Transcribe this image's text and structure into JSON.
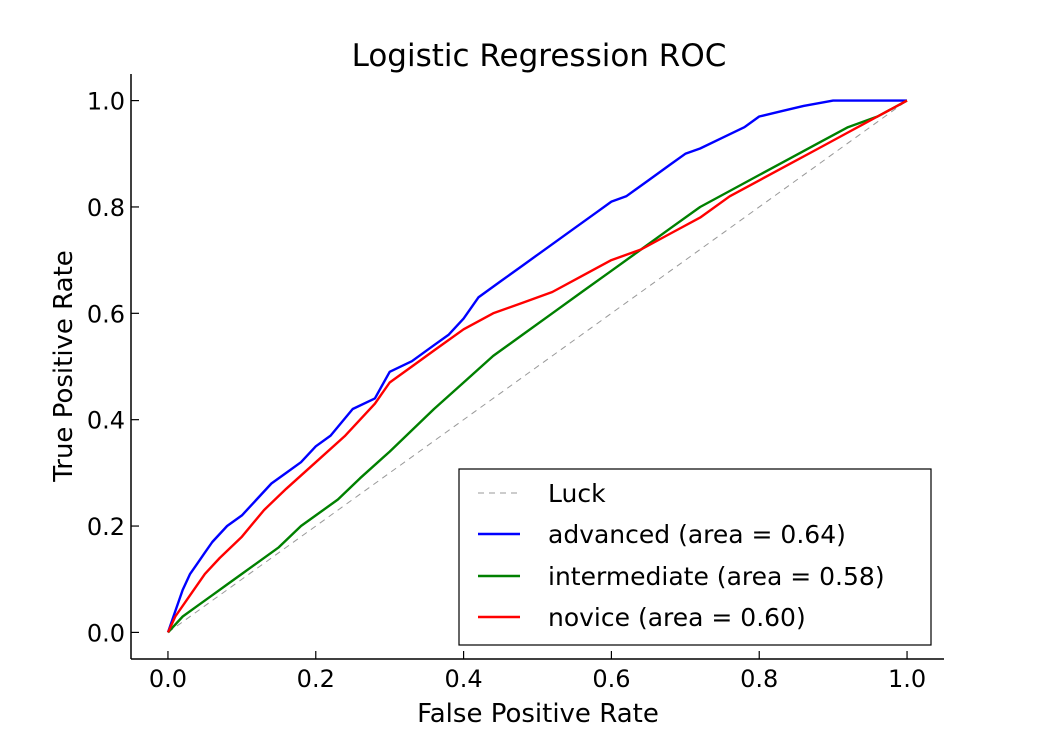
{
  "chart_data": {
    "type": "line",
    "title": "Logistic Regression ROC",
    "xlabel": "False Positive Rate",
    "ylabel": "True Positive Rate",
    "xlim": [
      -0.05,
      1.05
    ],
    "ylim": [
      -0.05,
      1.05
    ],
    "grid": false,
    "legend_position": "lower-right",
    "x_ticks": [
      0.0,
      0.2,
      0.4,
      0.6,
      0.8,
      1.0
    ],
    "y_ticks": [
      0.0,
      0.2,
      0.4,
      0.6,
      0.8,
      1.0
    ],
    "x_tick_labels": [
      "0.0",
      "0.2",
      "0.4",
      "0.6",
      "0.8",
      "1.0"
    ],
    "y_tick_labels": [
      "0.0",
      "0.2",
      "0.4",
      "0.6",
      "0.8",
      "1.0"
    ],
    "series": [
      {
        "name": "Luck",
        "color": "#999999",
        "style": "dashed",
        "x": [
          0.0,
          1.0
        ],
        "y": [
          0.0,
          1.0
        ]
      },
      {
        "name": "advanced (area = 0.64)",
        "color": "#0000ff",
        "style": "solid",
        "x": [
          0.0,
          0.01,
          0.02,
          0.03,
          0.04,
          0.05,
          0.06,
          0.08,
          0.1,
          0.12,
          0.14,
          0.16,
          0.18,
          0.2,
          0.22,
          0.25,
          0.28,
          0.3,
          0.33,
          0.36,
          0.38,
          0.4,
          0.42,
          0.45,
          0.48,
          0.5,
          0.52,
          0.55,
          0.58,
          0.6,
          0.62,
          0.65,
          0.68,
          0.7,
          0.72,
          0.75,
          0.78,
          0.8,
          0.83,
          0.86,
          0.9,
          0.95,
          1.0
        ],
        "y": [
          0.0,
          0.04,
          0.08,
          0.11,
          0.13,
          0.15,
          0.17,
          0.2,
          0.22,
          0.25,
          0.28,
          0.3,
          0.32,
          0.35,
          0.37,
          0.42,
          0.44,
          0.49,
          0.51,
          0.54,
          0.56,
          0.59,
          0.63,
          0.66,
          0.69,
          0.71,
          0.73,
          0.76,
          0.79,
          0.81,
          0.82,
          0.85,
          0.88,
          0.9,
          0.91,
          0.93,
          0.95,
          0.97,
          0.98,
          0.99,
          1.0,
          1.0,
          1.0
        ]
      },
      {
        "name": "intermediate (area = 0.58)",
        "color": "#008000",
        "style": "solid",
        "x": [
          0.0,
          0.02,
          0.04,
          0.06,
          0.08,
          0.1,
          0.12,
          0.15,
          0.18,
          0.2,
          0.23,
          0.26,
          0.3,
          0.33,
          0.36,
          0.4,
          0.44,
          0.48,
          0.52,
          0.56,
          0.6,
          0.64,
          0.68,
          0.72,
          0.76,
          0.8,
          0.84,
          0.88,
          0.92,
          0.96,
          1.0
        ],
        "y": [
          0.0,
          0.03,
          0.05,
          0.07,
          0.09,
          0.11,
          0.13,
          0.16,
          0.2,
          0.22,
          0.25,
          0.29,
          0.34,
          0.38,
          0.42,
          0.47,
          0.52,
          0.56,
          0.6,
          0.64,
          0.68,
          0.72,
          0.76,
          0.8,
          0.83,
          0.86,
          0.89,
          0.92,
          0.95,
          0.97,
          1.0
        ]
      },
      {
        "name": "novice (area = 0.60)",
        "color": "#ff0000",
        "style": "solid",
        "x": [
          0.0,
          0.01,
          0.03,
          0.05,
          0.07,
          0.1,
          0.13,
          0.16,
          0.2,
          0.24,
          0.28,
          0.3,
          0.33,
          0.36,
          0.4,
          0.44,
          0.48,
          0.52,
          0.56,
          0.6,
          0.64,
          0.68,
          0.72,
          0.76,
          0.8,
          0.84,
          0.88,
          0.92,
          0.96,
          1.0
        ],
        "y": [
          0.0,
          0.03,
          0.07,
          0.11,
          0.14,
          0.18,
          0.23,
          0.27,
          0.32,
          0.37,
          0.43,
          0.47,
          0.5,
          0.53,
          0.57,
          0.6,
          0.62,
          0.64,
          0.67,
          0.7,
          0.72,
          0.75,
          0.78,
          0.82,
          0.85,
          0.88,
          0.91,
          0.94,
          0.97,
          1.0
        ]
      }
    ]
  }
}
